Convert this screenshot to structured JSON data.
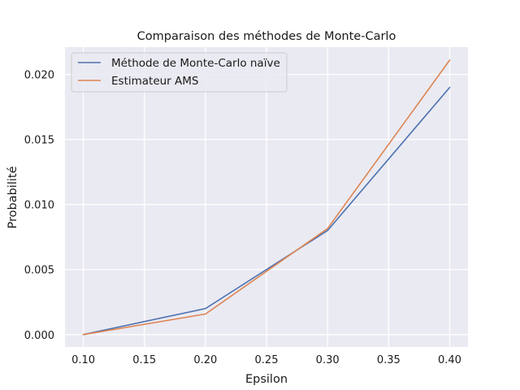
{
  "chart_data": {
    "type": "line",
    "title": "Comparaison des méthodes de Monte-Carlo",
    "xlabel": "Epsilon",
    "ylabel": "Probabilité",
    "x": [
      0.1,
      0.2,
      0.3,
      0.4
    ],
    "x_ticks": [
      "0.10",
      "0.15",
      "0.20",
      "0.25",
      "0.30",
      "0.35",
      "0.40"
    ],
    "y_ticks": [
      "0.000",
      "0.005",
      "0.010",
      "0.015",
      "0.020"
    ],
    "xlim": [
      0.085,
      0.415
    ],
    "ylim": [
      -0.00095,
      0.0221
    ],
    "grid": true,
    "legend_position": "top-left",
    "series": [
      {
        "name": "Méthode de Monte-Carlo naïve",
        "color": "#4c72b0",
        "values": [
          0.0,
          0.002,
          0.008,
          0.019
        ]
      },
      {
        "name": "Estimateur AMS",
        "color": "#dd8452",
        "values": [
          0.0,
          0.00158,
          0.00815,
          0.0211
        ]
      }
    ]
  }
}
